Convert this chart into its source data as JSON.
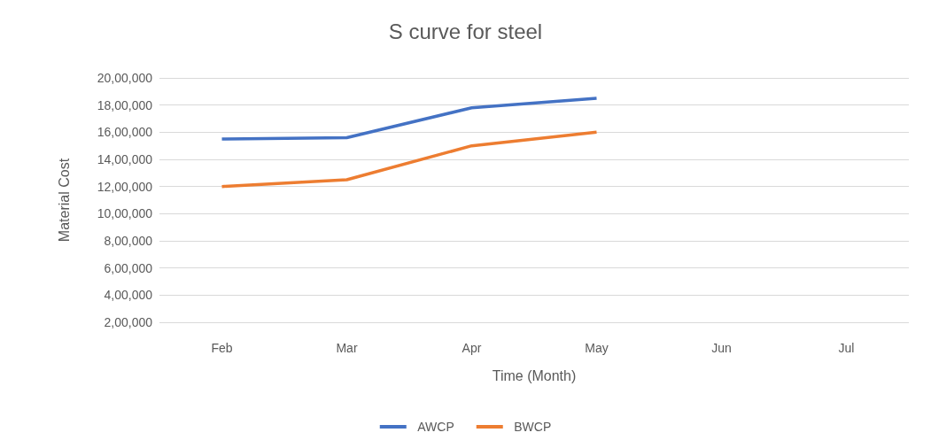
{
  "chart_data": {
    "type": "line",
    "title": "S curve for steel",
    "xlabel": "Time (Month)",
    "ylabel": "Material Cost",
    "categories": [
      "Feb",
      "Mar",
      "Apr",
      "May",
      "Jun",
      "Jul"
    ],
    "series": [
      {
        "name": "AWCP",
        "color": "#4472c4",
        "values": [
          1550000,
          1560000,
          1780000,
          1850000,
          null,
          null
        ]
      },
      {
        "name": "BWCP",
        "color": "#ed7d31",
        "values": [
          1200000,
          1250000,
          1500000,
          1600000,
          null,
          null
        ]
      }
    ],
    "ylim": [
      200000,
      2000000
    ],
    "yticks": [
      {
        "value": 200000,
        "label": "2,00,000"
      },
      {
        "value": 400000,
        "label": "4,00,000"
      },
      {
        "value": 600000,
        "label": "6,00,000"
      },
      {
        "value": 800000,
        "label": "8,00,000"
      },
      {
        "value": 1000000,
        "label": "10,00,000"
      },
      {
        "value": 1200000,
        "label": "12,00,000"
      },
      {
        "value": 1400000,
        "label": "14,00,000"
      },
      {
        "value": 1600000,
        "label": "16,00,000"
      },
      {
        "value": 1800000,
        "label": "18,00,000"
      },
      {
        "value": 2000000,
        "label": "20,00,000"
      }
    ],
    "grid": "y",
    "legend": "bottom",
    "marker": "none",
    "line_style": "solid"
  }
}
